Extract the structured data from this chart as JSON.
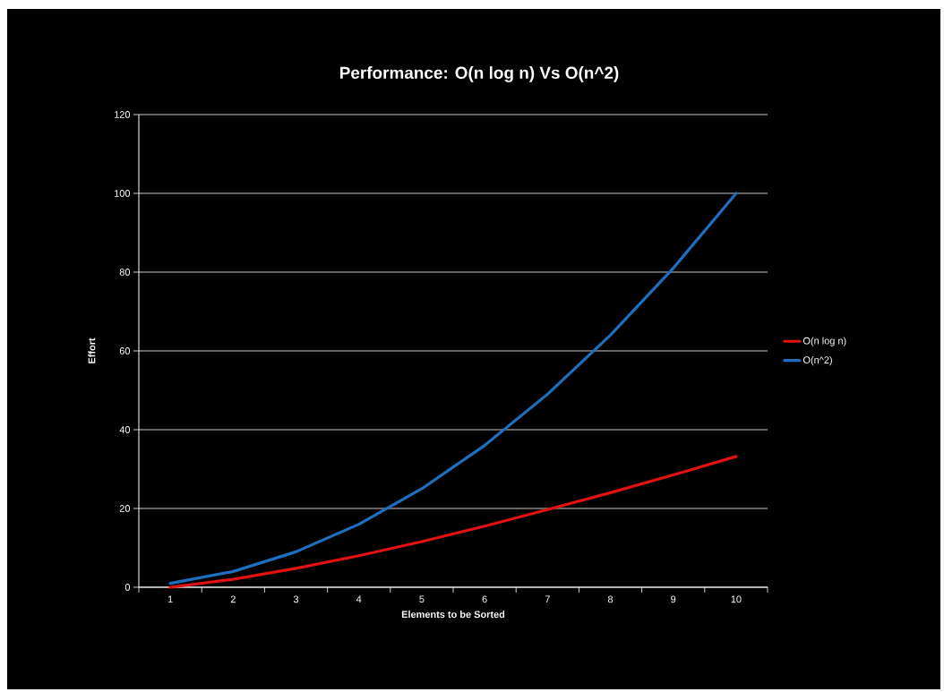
{
  "chart_data": {
    "type": "line",
    "title": "Performance: O(n log n) Vs O(n^2)",
    "xlabel": "Elements to be Sorted",
    "ylabel": "Effort",
    "categories": [
      "1",
      "2",
      "3",
      "4",
      "5",
      "6",
      "7",
      "8",
      "9",
      "10"
    ],
    "series": [
      {
        "name": "O(n log n)",
        "color": "#e31212",
        "values": [
          0,
          2,
          4.8,
          8,
          11.6,
          15.5,
          19.7,
          24,
          28.5,
          33.2
        ]
      },
      {
        "name": "O(n^2)",
        "color": "#1f6fc0",
        "values": [
          1,
          4,
          9,
          16,
          25,
          36,
          49,
          64,
          81,
          100
        ]
      }
    ],
    "ylim": [
      0,
      120
    ],
    "yticks": [
      0,
      20,
      40,
      60,
      80,
      100,
      120
    ],
    "grid": "y",
    "legend": "right"
  }
}
